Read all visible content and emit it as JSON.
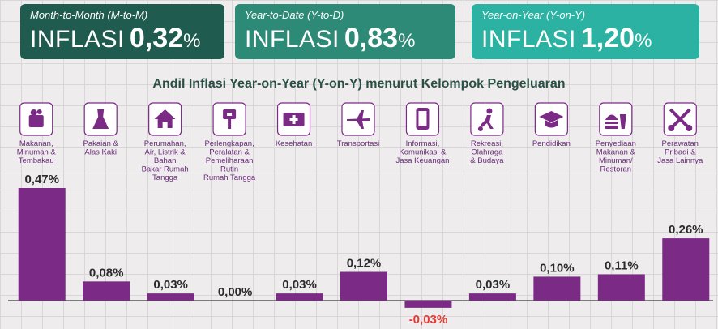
{
  "cards": {
    "mtm": {
      "subtitle": "Month-to-Month (M-to-M)",
      "word": "INFLASI",
      "value": "0,32",
      "pct": "%"
    },
    "ytd": {
      "subtitle": "Year-to-Date (Y-to-D)",
      "word": "INFLASI",
      "value": "0,83",
      "pct": "%"
    },
    "yoy": {
      "subtitle": "Year-on-Year (Y-on-Y)",
      "word": "INFLASI",
      "value": "1,20",
      "pct": "%"
    }
  },
  "colors": {
    "bar": "#7b2a86",
    "icon_border": "#7b2a86",
    "negative": "#e53935"
  },
  "chart_data": {
    "type": "bar",
    "title": "Andil Inflasi Year-on-Year (Y-on-Y) menurut Kelompok Pengeluaran",
    "categories": [
      "Makanan, Minuman & Tembakau",
      "Pakaian & Alas Kaki",
      "Perumahan, Air, Listrik & Bahan Bakar Rumah Tangga",
      "Perlengkapan, Peralatan & Pemeliharaan Rutin Rumah Tangga",
      "Kesehatan",
      "Transportasi",
      "Informasi, Komunikasi & Jasa Keuangan",
      "Rekreasi, Olahraga & Budaya",
      "Pendidikan",
      "Penyediaan Makanan & Minuman/ Restoran",
      "Perawatan Pribadi & Jasa Lainnya"
    ],
    "category_lines": [
      [
        "Makanan,",
        "Minuman &",
        "Tembakau"
      ],
      [
        "Pakaian &",
        "Alas Kaki"
      ],
      [
        "Perumahan,",
        "Air, Listrik &",
        "Bahan",
        "Bakar Rumah",
        "Tangga"
      ],
      [
        "Perlengkapan,",
        "Peralatan &",
        "Pemeliharaan",
        "Rutin",
        "Rumah Tangga"
      ],
      [
        "Kesehatan"
      ],
      [
        "Transportasi"
      ],
      [
        "Informasi,",
        "Komunikasi &",
        "Jasa Keuangan"
      ],
      [
        "Rekreasi,",
        "Olahraga",
        "& Budaya"
      ],
      [
        "Pendidikan"
      ],
      [
        "Penyediaan",
        "Makanan &",
        "Minuman/",
        "Restoran"
      ],
      [
        "Perawatan",
        "Pribadi &",
        "Jasa Lainnya"
      ]
    ],
    "values": [
      0.47,
      0.08,
      0.03,
      0.0,
      0.03,
      0.12,
      -0.03,
      0.03,
      0.1,
      0.11,
      0.26
    ],
    "value_labels": [
      "0,47%",
      "0,08%",
      "0,03%",
      "0,00%",
      "0,03%",
      "0,12%",
      "-0,03%",
      "0,03%",
      "0,10%",
      "0,11%",
      "0,26%"
    ],
    "icons": [
      "grocery-bag-icon",
      "dress-icon",
      "house-icon",
      "plug-icon",
      "first-aid-kit-icon",
      "airplane-icon",
      "smartphone-icon",
      "soccer-player-icon",
      "graduation-cap-icon",
      "burger-drink-icon",
      "scissors-comb-icon"
    ],
    "ylim": [
      -0.03,
      0.47
    ],
    "grid": true
  }
}
